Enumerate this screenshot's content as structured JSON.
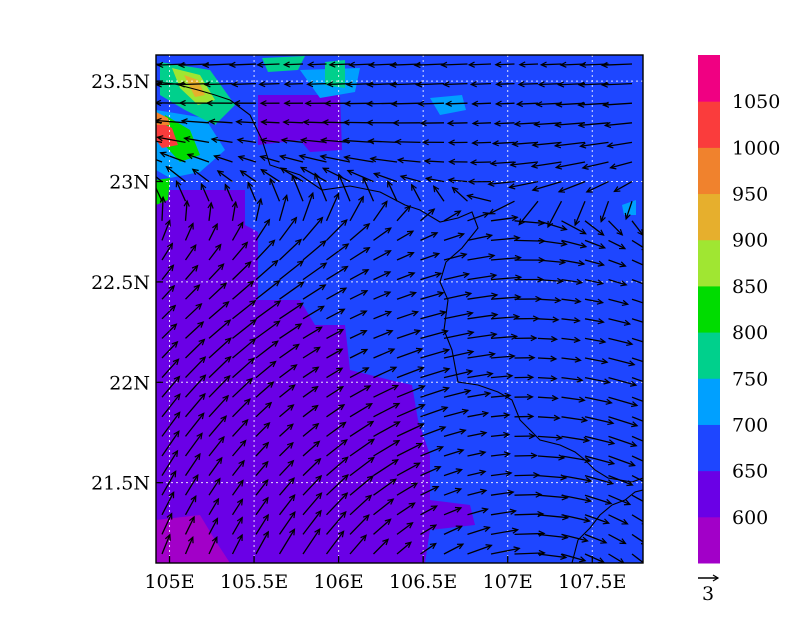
{
  "map": {
    "lon_ticks": [
      "105E",
      "105.5E",
      "106E",
      "106.5E",
      "107E",
      "107.5E"
    ],
    "lat_ticks": [
      "23.5N",
      "23N",
      "22.5N",
      "22N",
      "21.5N"
    ],
    "lon_range": [
      104.92,
      107.8
    ],
    "lat_range": [
      21.1,
      23.63
    ],
    "grid": "dotted"
  },
  "colorbar": {
    "labels": [
      "600",
      "650",
      "700",
      "750",
      "800",
      "850",
      "900",
      "950",
      "1000",
      "1050"
    ],
    "colors": [
      "#a200c8",
      "#6a00e6",
      "#1e46ff",
      "#00a0ff",
      "#00d08c",
      "#00dc00",
      "#a0e632",
      "#e6af2d",
      "#f0822d",
      "#fa3c3c",
      "#f00082"
    ]
  },
  "vector_reference": {
    "label": "3"
  },
  "colors": {
    "background": "#ffffff",
    "axis": "#000000",
    "gridline": "#ffffff",
    "arrow": "#000000",
    "boundary": "#000000"
  }
}
